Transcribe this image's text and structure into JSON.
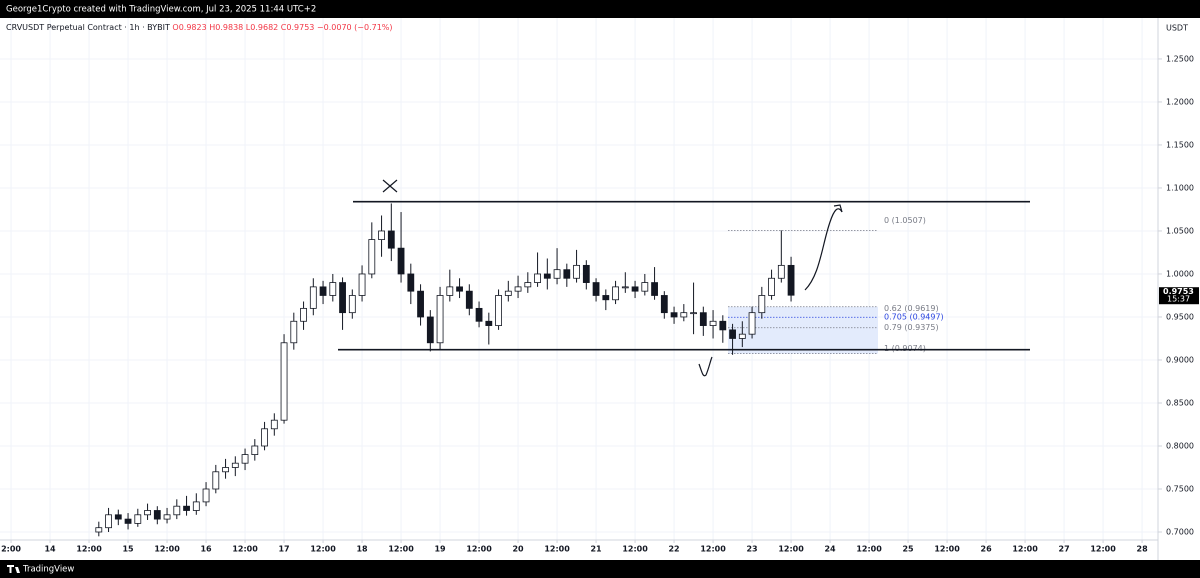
{
  "chart_data": {
    "type": "candlestick",
    "header": "George1Crypto created with TradingView.com, Jul 23, 2025 11:44 UTC+2",
    "symbol": "CRVUSDT Perpetual Contract · 1h · BYBIT",
    "ohlc_info": [
      "O0.9823",
      "H0.9838",
      "L0.9682",
      "C0.9753",
      "−0.0070 (−0.71%)"
    ],
    "axis_unit": "USDT",
    "brand": "TradingView",
    "last_price": 0.9753,
    "countdown": "15:37",
    "up_color": "#ffffff",
    "down_color": "#131722",
    "wick_color": "#131722",
    "grid": true,
    "xlim": [
      -15.4,
      340.9
    ],
    "ylim": [
      0.6907,
      1.2976
    ],
    "yticks": [
      {
        "value": 0.7,
        "label": "0.7000"
      },
      {
        "value": 0.75,
        "label": "0.7500"
      },
      {
        "value": 0.8,
        "label": "0.8000"
      },
      {
        "value": 0.85,
        "label": "0.8500"
      },
      {
        "value": 0.9,
        "label": "0.9000"
      },
      {
        "value": 0.95,
        "label": "0.9500"
      },
      {
        "value": 1.0,
        "label": "1.0000"
      },
      {
        "value": 1.05,
        "label": "1.0500"
      },
      {
        "value": 1.1,
        "label": "1.1000"
      },
      {
        "value": 1.15,
        "label": "1.1500"
      },
      {
        "value": 1.2,
        "label": "1.2000"
      },
      {
        "value": 1.25,
        "label": "1.2500"
      }
    ],
    "xticks": [
      {
        "value": -12,
        "label": "2:00"
      },
      {
        "value": 0,
        "label": "14"
      },
      {
        "value": 12,
        "label": "12:00"
      },
      {
        "value": 24,
        "label": "15"
      },
      {
        "value": 36,
        "label": "12:00"
      },
      {
        "value": 48,
        "label": "16"
      },
      {
        "value": 60,
        "label": "12:00"
      },
      {
        "value": 72,
        "label": "17"
      },
      {
        "value": 84,
        "label": "12:00"
      },
      {
        "value": 96,
        "label": "18"
      },
      {
        "value": 108,
        "label": "12:00"
      },
      {
        "value": 120,
        "label": "19"
      },
      {
        "value": 132,
        "label": "12:00"
      },
      {
        "value": 144,
        "label": "20"
      },
      {
        "value": 156,
        "label": "12:00"
      },
      {
        "value": 168,
        "label": "21"
      },
      {
        "value": 180,
        "label": "12:00"
      },
      {
        "value": 192,
        "label": "22"
      },
      {
        "value": 204,
        "label": "12:00"
      },
      {
        "value": 216,
        "label": "23"
      },
      {
        "value": 228,
        "label": "12:00"
      },
      {
        "value": 240,
        "label": "24"
      },
      {
        "value": 252,
        "label": "12:00"
      },
      {
        "value": 264,
        "label": "25"
      },
      {
        "value": 276,
        "label": "12:00"
      },
      {
        "value": 288,
        "label": "26"
      },
      {
        "value": 300,
        "label": "12:00"
      },
      {
        "value": 312,
        "label": "27"
      },
      {
        "value": 324,
        "label": "12:00"
      },
      {
        "value": 336,
        "label": "28"
      }
    ],
    "levels": [
      1.084,
      0.912
    ],
    "fib": [
      {
        "value": 1.0507,
        "label": "0 (1.0507)"
      },
      {
        "value": 0.9619,
        "label": "0.62 (0.9619)"
      },
      {
        "value": 0.9497,
        "label": "0.705 (0.9497)"
      },
      {
        "value": 0.9375,
        "label": "0.79 (0.9375)"
      },
      {
        "value": 0.9074,
        "label": "1 (0.9074)"
      }
    ],
    "x": [
      15,
      18,
      21,
      24,
      27,
      30,
      33,
      36,
      39,
      42,
      45,
      48,
      51,
      54,
      57,
      60,
      63,
      66,
      69,
      72,
      75,
      78,
      81,
      84,
      87,
      90,
      93,
      96,
      99,
      102,
      105,
      108,
      111,
      114,
      117,
      120,
      123,
      126,
      129,
      132,
      135,
      138,
      141,
      144,
      147,
      150,
      153,
      156,
      159,
      162,
      165,
      168,
      171,
      174,
      177,
      180,
      183,
      186,
      189,
      192,
      195,
      198,
      201,
      204,
      207,
      210,
      213,
      216,
      219,
      222,
      225,
      228
    ],
    "ohlc": [
      [
        0.7,
        0.712,
        0.695,
        0.705
      ],
      [
        0.705,
        0.728,
        0.7,
        0.72
      ],
      [
        0.72,
        0.726,
        0.708,
        0.715
      ],
      [
        0.715,
        0.722,
        0.703,
        0.71
      ],
      [
        0.71,
        0.727,
        0.706,
        0.72
      ],
      [
        0.72,
        0.733,
        0.714,
        0.725
      ],
      [
        0.725,
        0.73,
        0.709,
        0.715
      ],
      [
        0.715,
        0.728,
        0.71,
        0.72
      ],
      [
        0.72,
        0.738,
        0.715,
        0.73
      ],
      [
        0.73,
        0.742,
        0.719,
        0.725
      ],
      [
        0.725,
        0.745,
        0.72,
        0.735
      ],
      [
        0.735,
        0.758,
        0.73,
        0.75
      ],
      [
        0.75,
        0.778,
        0.745,
        0.77
      ],
      [
        0.77,
        0.785,
        0.762,
        0.775
      ],
      [
        0.775,
        0.788,
        0.765,
        0.78
      ],
      [
        0.78,
        0.797,
        0.772,
        0.79
      ],
      [
        0.79,
        0.808,
        0.783,
        0.8
      ],
      [
        0.8,
        0.828,
        0.795,
        0.82
      ],
      [
        0.82,
        0.838,
        0.812,
        0.83
      ],
      [
        0.83,
        0.93,
        0.826,
        0.92
      ],
      [
        0.92,
        0.955,
        0.912,
        0.945
      ],
      [
        0.945,
        0.968,
        0.935,
        0.96
      ],
      [
        0.96,
        0.995,
        0.952,
        0.985
      ],
      [
        0.985,
        0.992,
        0.965,
        0.975
      ],
      [
        0.975,
        1.0,
        0.968,
        0.99
      ],
      [
        0.99,
        0.996,
        0.935,
        0.955
      ],
      [
        0.955,
        0.982,
        0.948,
        0.975
      ],
      [
        0.975,
        1.01,
        0.968,
        1.0
      ],
      [
        1.0,
        1.06,
        0.995,
        1.04
      ],
      [
        1.04,
        1.068,
        1.02,
        1.05
      ],
      [
        1.05,
        1.082,
        1.015,
        1.03
      ],
      [
        1.03,
        1.072,
        0.99,
        1.0
      ],
      [
        1.0,
        1.012,
        0.965,
        0.98
      ],
      [
        0.98,
        0.988,
        0.94,
        0.95
      ],
      [
        0.95,
        0.958,
        0.91,
        0.92
      ],
      [
        0.92,
        0.985,
        0.912,
        0.975
      ],
      [
        0.975,
        1.005,
        0.968,
        0.985
      ],
      [
        0.985,
        0.995,
        0.972,
        0.98
      ],
      [
        0.98,
        0.988,
        0.952,
        0.96
      ],
      [
        0.96,
        0.968,
        0.938,
        0.945
      ],
      [
        0.945,
        0.955,
        0.918,
        0.94
      ],
      [
        0.94,
        0.982,
        0.935,
        0.975
      ],
      [
        0.975,
        0.992,
        0.968,
        0.98
      ],
      [
        0.98,
        0.998,
        0.972,
        0.985
      ],
      [
        0.985,
        1.002,
        0.978,
        0.99
      ],
      [
        0.99,
        1.025,
        0.985,
        1.0
      ],
      [
        1.0,
        1.018,
        0.982,
        0.995
      ],
      [
        0.995,
        1.03,
        0.988,
        1.005
      ],
      [
        1.005,
        1.012,
        0.985,
        0.995
      ],
      [
        0.995,
        1.028,
        0.99,
        1.01
      ],
      [
        1.01,
        1.016,
        0.982,
        0.99
      ],
      [
        0.99,
        0.995,
        0.968,
        0.975
      ],
      [
        0.975,
        0.982,
        0.958,
        0.97
      ],
      [
        0.97,
        0.992,
        0.965,
        0.985
      ],
      [
        0.985,
        1.002,
        0.978,
        0.985
      ],
      [
        0.985,
        0.992,
        0.972,
        0.98
      ],
      [
        0.98,
        1.0,
        0.975,
        0.99
      ],
      [
        0.99,
        1.008,
        0.97,
        0.975
      ],
      [
        0.975,
        0.98,
        0.948,
        0.955
      ],
      [
        0.955,
        0.962,
        0.942,
        0.95
      ],
      [
        0.95,
        0.965,
        0.945,
        0.955
      ],
      [
        0.955,
        0.99,
        0.93,
        0.955
      ],
      [
        0.955,
        0.962,
        0.928,
        0.94
      ],
      [
        0.94,
        0.958,
        0.925,
        0.945
      ],
      [
        0.945,
        0.952,
        0.92,
        0.935
      ],
      [
        0.935,
        0.942,
        0.906,
        0.925
      ],
      [
        0.925,
        0.945,
        0.915,
        0.93
      ],
      [
        0.93,
        0.962,
        0.925,
        0.955
      ],
      [
        0.955,
        0.985,
        0.948,
        0.975
      ],
      [
        0.975,
        1.005,
        0.97,
        0.995
      ],
      [
        0.995,
        1.0507,
        0.99,
        1.01
      ],
      [
        1.01,
        1.02,
        0.968,
        0.9753
      ]
    ]
  }
}
